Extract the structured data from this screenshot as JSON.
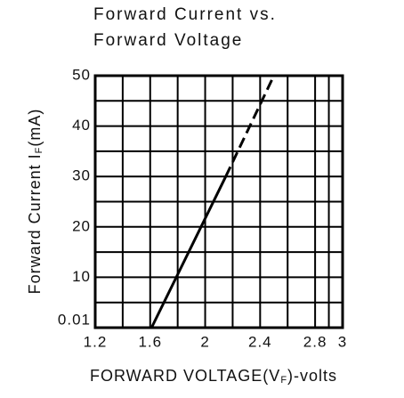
{
  "chart_data": {
    "type": "line",
    "title": [
      "Forward Current vs.",
      "Forward Voltage"
    ],
    "xlabel": [
      "FORWARD VOLTAGE(V",
      "F",
      ")-volts"
    ],
    "ylabel": [
      "Forward Current I",
      "F",
      "(mA)"
    ],
    "xlim": [
      1.2,
      3.0
    ],
    "xticks": [
      1.2,
      1.6,
      2.0,
      2.4,
      2.8,
      3.0
    ],
    "ylim": [
      0,
      50
    ],
    "yticks": [
      {
        "value": 0,
        "label": "0.01"
      },
      10,
      20,
      30,
      40,
      50
    ],
    "grid": true,
    "series": [
      {
        "color": "#000000",
        "dashed": false,
        "x": [
          1.61,
          2.15
        ],
        "values": [
          0,
          30
        ]
      },
      {
        "color": "#000000",
        "dashed": true,
        "x": [
          2.15,
          2.5
        ],
        "values": [
          30,
          50
        ]
      }
    ]
  }
}
